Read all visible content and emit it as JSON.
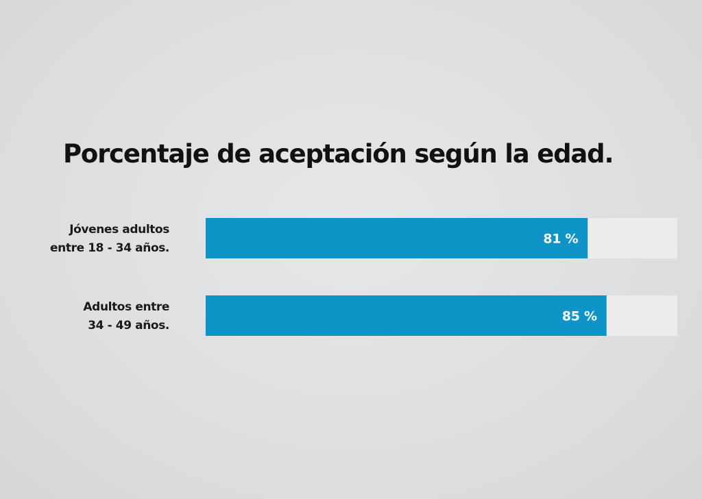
{
  "chart_data": {
    "type": "bar",
    "orientation": "horizontal",
    "title": "Porcentaje de aceptación según la edad.",
    "categories": [
      [
        "Jóvenes adultos",
        "entre 18 - 34 años."
      ],
      [
        "Adultos entre",
        "34 - 49 años."
      ]
    ],
    "values": [
      81,
      85
    ],
    "value_labels": [
      "81 %",
      "85 %"
    ],
    "xlim": [
      0,
      100
    ],
    "grid": false,
    "legend": "none",
    "colors": {
      "bar": "#0f94c8",
      "track": "#ececec",
      "title": "#111111",
      "label": "#1a1a1a",
      "value_text": "#ffffff"
    }
  }
}
